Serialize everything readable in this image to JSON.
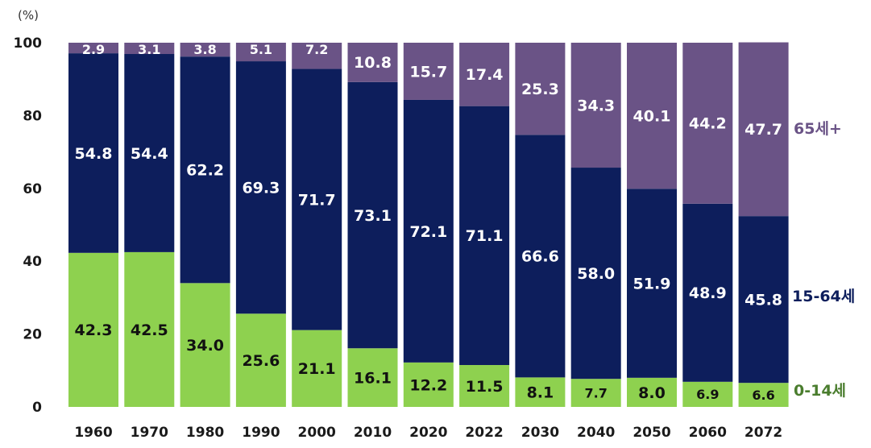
{
  "chart_data": {
    "type": "bar",
    "stacked": true,
    "unit_label": "(%)",
    "ylim": [
      0,
      100
    ],
    "yticks": [
      0,
      20,
      40,
      60,
      80,
      100
    ],
    "categories": [
      "1960",
      "1970",
      "1980",
      "1990",
      "2000",
      "2010",
      "2020",
      "2022",
      "2030",
      "2040",
      "2050",
      "2060",
      "2072"
    ],
    "series": [
      {
        "name": "0-14세",
        "color": "#8ed14f",
        "label_color": "#111111",
        "values": [
          42.3,
          42.5,
          34.0,
          25.6,
          21.1,
          16.1,
          12.2,
          11.5,
          8.1,
          7.7,
          8.0,
          6.9,
          6.6
        ],
        "labels": [
          "42.3",
          "42.5",
          "34.0",
          "25.6",
          "21.1",
          "16.1",
          "12.2",
          "11.5",
          "8.1",
          "7.7",
          "8.0",
          "6.9",
          "6.6"
        ]
      },
      {
        "name": "15-64세",
        "color": "#0d1e5c",
        "label_color": "#ffffff",
        "values": [
          54.8,
          54.4,
          62.2,
          69.3,
          71.7,
          73.1,
          72.1,
          71.1,
          66.6,
          58.0,
          51.9,
          48.9,
          45.8
        ],
        "labels": [
          "54.8",
          "54.4",
          "62.2",
          "69.3",
          "71.7",
          "73.1",
          "72.1",
          "71.1",
          "66.6",
          "58.0",
          "51.9",
          "48.9",
          "45.8"
        ]
      },
      {
        "name": "65세+",
        "color": "#6a5386",
        "label_color": "#ffffff",
        "values": [
          2.9,
          3.1,
          3.8,
          5.1,
          7.2,
          10.8,
          15.7,
          17.4,
          25.3,
          34.3,
          40.1,
          44.2,
          47.7
        ],
        "labels": [
          "2.9",
          "3.1",
          "3.8",
          "5.1",
          "7.2",
          "10.8",
          "15.7",
          "17.4",
          "25.3",
          "34.3",
          "40.1",
          "44.2",
          "47.7"
        ]
      }
    ],
    "legend": [
      {
        "name": "65세+",
        "color": "#6a5386"
      },
      {
        "name": "15-64세",
        "color": "#0d1e5c"
      },
      {
        "name": "0-14세",
        "color": "#4a7d2e"
      }
    ],
    "legend_position": "right"
  }
}
